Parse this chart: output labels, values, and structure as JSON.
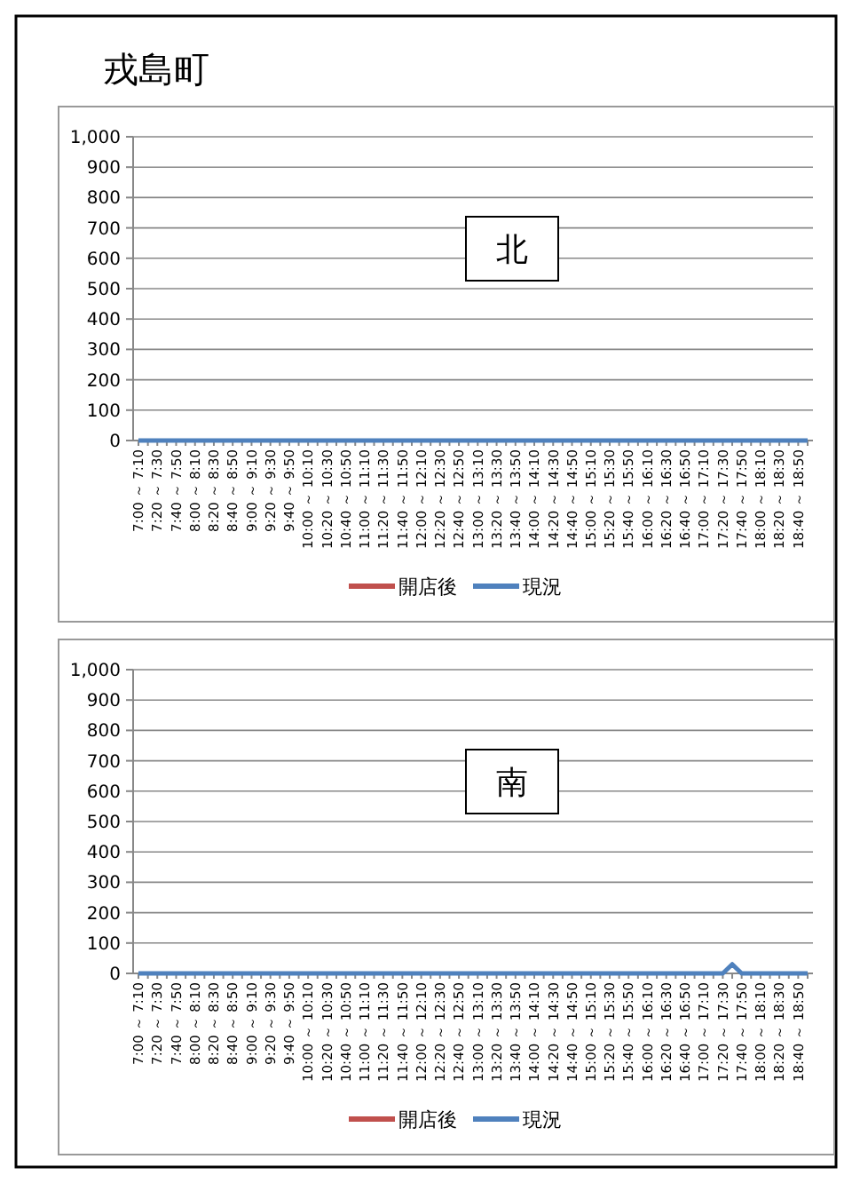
{
  "chart_data": [
    {
      "type": "line",
      "title": "戎島町",
      "annotations": [
        "北"
      ],
      "categories": [
        "7:00 ～ 7:10",
        null,
        "7:20 ～ 7:30",
        null,
        "7:40 ～ 7:50",
        null,
        "8:00 ～ 8:10",
        null,
        "8:20 ～ 8:30",
        null,
        "8:40 ～ 8:50",
        null,
        "9:00 ～ 9:10",
        null,
        "9:20 ～ 9:30",
        null,
        "9:40 ～ 9:50",
        null,
        "10:00 ～ 10:10",
        null,
        "10:20 ～ 10:30",
        null,
        "10:40 ～ 10:50",
        null,
        "11:00 ～ 11:10",
        null,
        "11:20 ～ 11:30",
        null,
        "11:40 ～ 11:50",
        null,
        "12:00 ～ 12:10",
        null,
        "12:20 ～ 12:30",
        null,
        "12:40 ～ 12:50",
        null,
        "13:00 ～ 13:10",
        null,
        "13:20 ～ 13:30",
        null,
        "13:40 ～ 13:50",
        null,
        "14:00 ～ 14:10",
        null,
        "14:20 ～ 14:30",
        null,
        "14:40 ～ 14:50",
        null,
        "15:00 ～ 15:10",
        null,
        "15:20 ～ 15:30",
        null,
        "15:40 ～ 15:50",
        null,
        "16:00 ～ 16:10",
        null,
        "16:20 ～ 16:30",
        null,
        "16:40 ～ 16:50",
        null,
        "17:00 ～ 17:10",
        null,
        "17:20 ～ 17:30",
        null,
        "17:40 ～ 17:50",
        null,
        "18:00 ～ 18:10",
        null,
        "18:20 ～ 18:30",
        null,
        "18:40 ～ 18:50",
        null
      ],
      "series": [
        {
          "name": "開店後",
          "color": "#c0504d",
          "values": [
            null,
            null,
            null,
            null,
            null,
            null,
            null,
            null,
            null,
            null,
            null,
            null,
            null,
            null,
            null,
            null,
            null,
            null,
            null,
            null,
            null,
            null,
            null,
            null,
            null,
            null,
            null,
            null,
            null,
            null,
            null,
            null,
            null,
            null,
            null,
            null,
            null,
            null,
            null,
            null,
            null,
            null,
            null,
            null,
            null,
            null,
            null,
            null,
            null,
            null,
            null,
            null,
            null,
            null,
            null,
            null,
            null,
            null,
            null,
            null,
            null,
            null,
            null,
            null,
            null,
            null,
            null,
            null,
            null,
            null,
            null,
            null
          ]
        },
        {
          "name": "現況",
          "color": "#4f81bd",
          "values": [
            0,
            0,
            0,
            0,
            0,
            0,
            0,
            0,
            0,
            0,
            0,
            0,
            0,
            0,
            0,
            0,
            0,
            0,
            0,
            0,
            0,
            0,
            0,
            0,
            0,
            0,
            0,
            0,
            0,
            0,
            0,
            0,
            0,
            0,
            0,
            0,
            0,
            0,
            0,
            0,
            0,
            0,
            0,
            0,
            0,
            0,
            0,
            0,
            0,
            0,
            0,
            0,
            0,
            0,
            0,
            0,
            0,
            0,
            0,
            0,
            0,
            0,
            0,
            0,
            0,
            0,
            0,
            0,
            0,
            0,
            0,
            0
          ]
        }
      ],
      "ylim": [
        0,
        1000
      ],
      "yticks": [
        0,
        100,
        200,
        300,
        400,
        500,
        600,
        700,
        800,
        900,
        {
          "value": 1000,
          "label": "1,000"
        }
      ],
      "grid": "y",
      "legend": "bottom"
    },
    {
      "type": "line",
      "annotations": [
        "南"
      ],
      "categories": [
        "7:00 ～ 7:10",
        null,
        "7:20 ～ 7:30",
        null,
        "7:40 ～ 7:50",
        null,
        "8:00 ～ 8:10",
        null,
        "8:20 ～ 8:30",
        null,
        "8:40 ～ 8:50",
        null,
        "9:00 ～ 9:10",
        null,
        "9:20 ～ 9:30",
        null,
        "9:40 ～ 9:50",
        null,
        "10:00 ～ 10:10",
        null,
        "10:20 ～ 10:30",
        null,
        "10:40 ～ 10:50",
        null,
        "11:00 ～ 11:10",
        null,
        "11:20 ～ 11:30",
        null,
        "11:40 ～ 11:50",
        null,
        "12:00 ～ 12:10",
        null,
        "12:20 ～ 12:30",
        null,
        "12:40 ～ 12:50",
        null,
        "13:00 ～ 13:10",
        null,
        "13:20 ～ 13:30",
        null,
        "13:40 ～ 13:50",
        null,
        "14:00 ～ 14:10",
        null,
        "14:20 ～ 14:30",
        null,
        "14:40 ～ 14:50",
        null,
        "15:00 ～ 15:10",
        null,
        "15:20 ～ 15:30",
        null,
        "15:40 ～ 15:50",
        null,
        "16:00 ～ 16:10",
        null,
        "16:20 ～ 16:30",
        null,
        "16:40 ～ 16:50",
        null,
        "17:00 ～ 17:10",
        null,
        "17:20 ～ 17:30",
        null,
        "17:40 ～ 17:50",
        null,
        "18:00 ～ 18:10",
        null,
        "18:20 ～ 18:30",
        null,
        "18:40 ～ 18:50",
        null
      ],
      "series": [
        {
          "name": "開店後",
          "color": "#c0504d",
          "values": [
            null,
            null,
            null,
            null,
            null,
            null,
            null,
            null,
            null,
            null,
            null,
            null,
            null,
            null,
            null,
            null,
            null,
            null,
            null,
            null,
            null,
            null,
            null,
            null,
            null,
            null,
            null,
            null,
            null,
            null,
            null,
            null,
            null,
            null,
            null,
            null,
            null,
            null,
            null,
            null,
            null,
            null,
            null,
            null,
            null,
            null,
            null,
            null,
            null,
            null,
            null,
            null,
            null,
            null,
            null,
            null,
            null,
            null,
            null,
            null,
            null,
            null,
            null,
            null,
            null,
            null,
            null,
            null,
            null,
            null,
            null,
            null
          ]
        },
        {
          "name": "現況",
          "color": "#4f81bd",
          "values": [
            0,
            0,
            0,
            0,
            0,
            0,
            0,
            0,
            0,
            0,
            0,
            0,
            0,
            0,
            0,
            0,
            0,
            0,
            0,
            0,
            0,
            0,
            0,
            0,
            0,
            0,
            0,
            0,
            0,
            0,
            0,
            0,
            0,
            0,
            0,
            0,
            0,
            0,
            0,
            0,
            0,
            0,
            0,
            0,
            0,
            0,
            0,
            0,
            0,
            0,
            0,
            0,
            0,
            0,
            0,
            0,
            0,
            0,
            0,
            0,
            0,
            0,
            0,
            30,
            0,
            0,
            0,
            0,
            0,
            0,
            0,
            0
          ]
        }
      ],
      "ylim": [
        0,
        1000
      ],
      "yticks": [
        0,
        100,
        200,
        300,
        400,
        500,
        600,
        700,
        800,
        900,
        {
          "value": 1000,
          "label": "1,000"
        }
      ],
      "grid": "y",
      "legend": "bottom"
    }
  ]
}
